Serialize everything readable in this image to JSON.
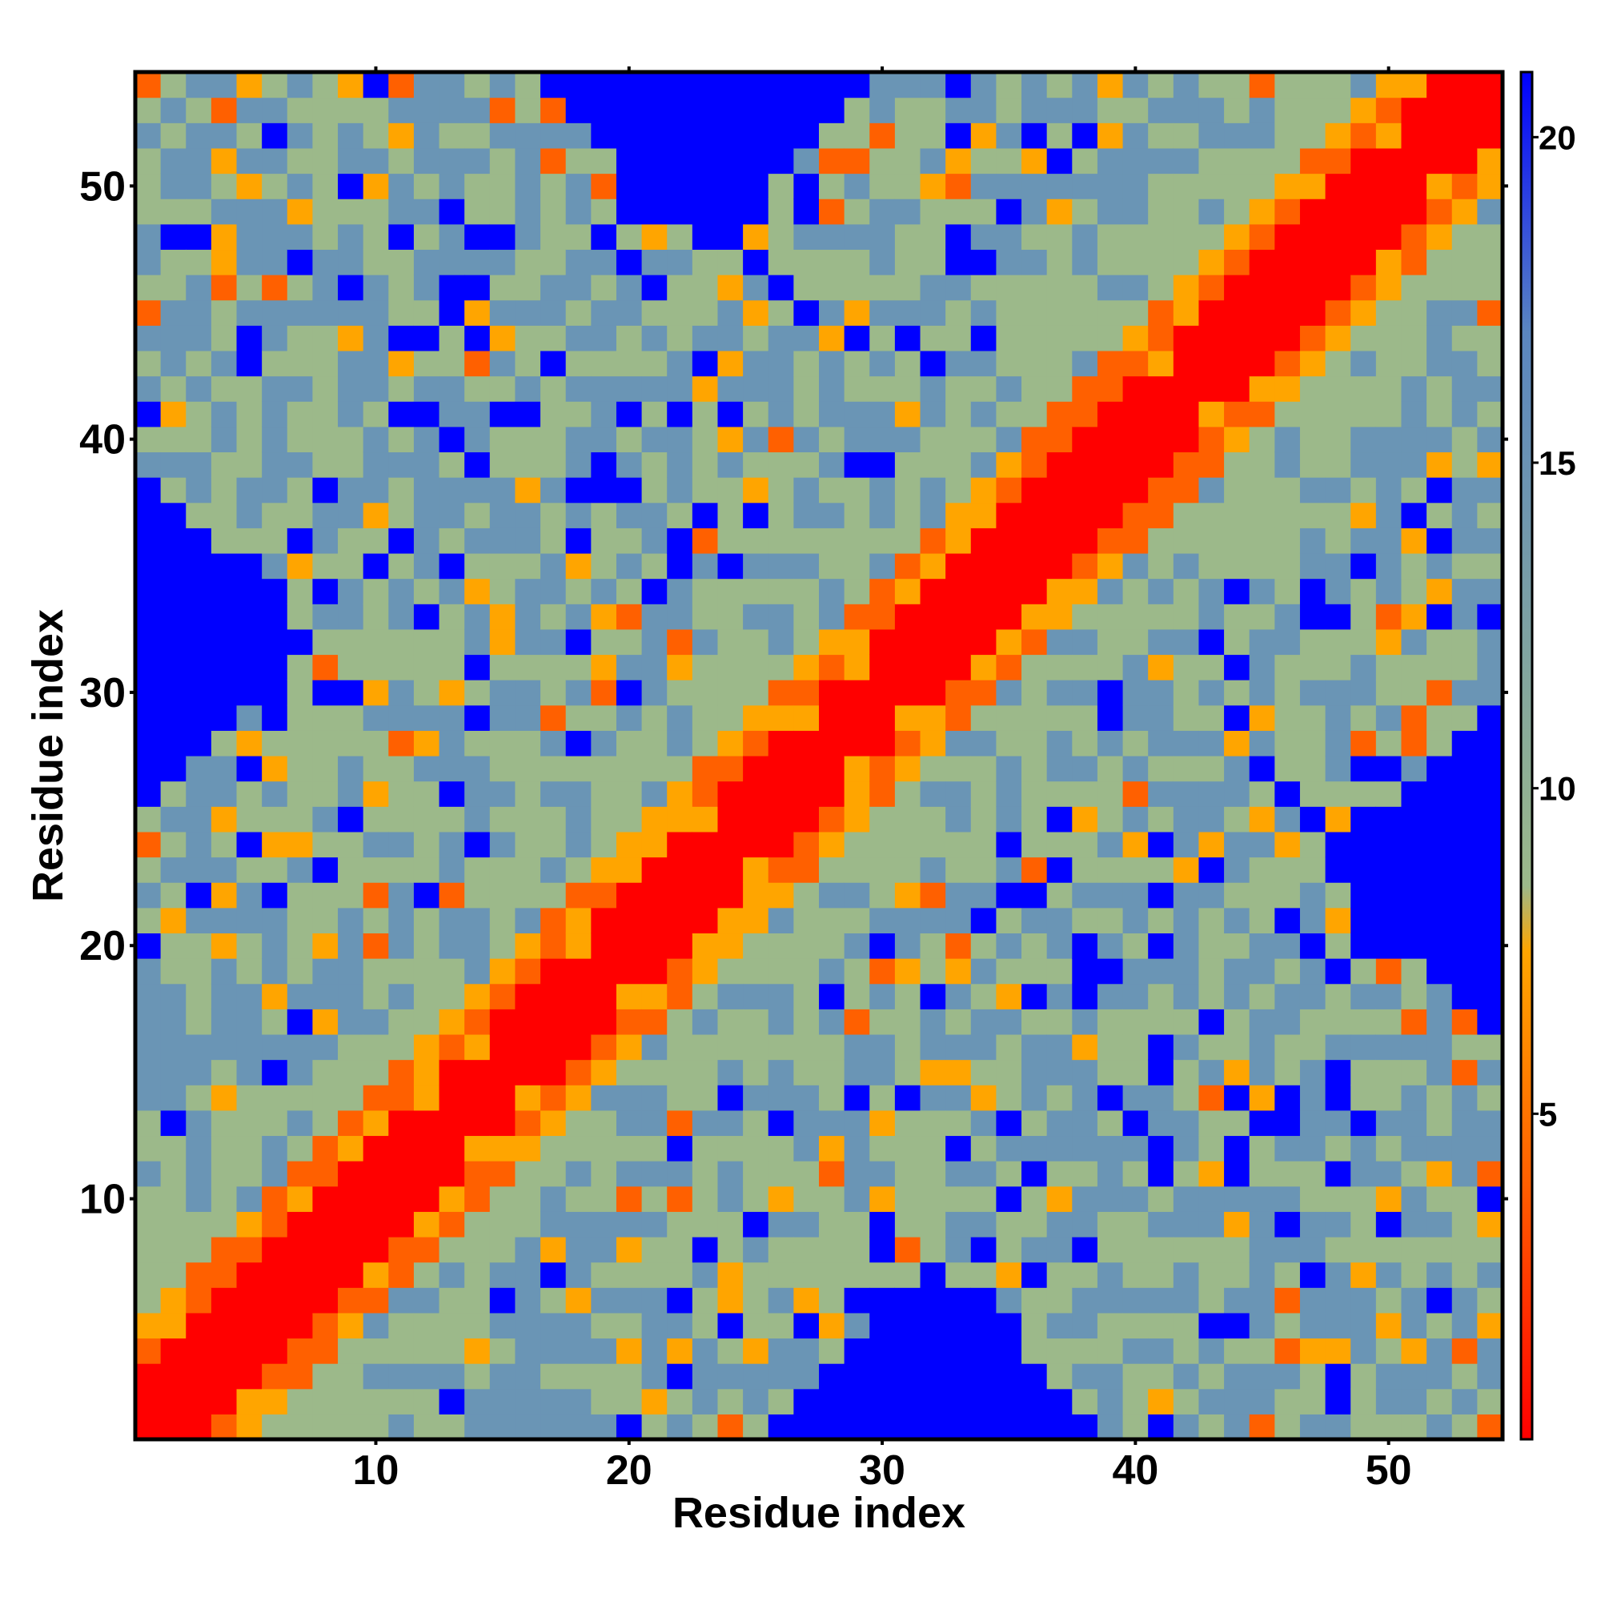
{
  "chart_data": {
    "type": "heatmap",
    "title": "",
    "xlabel": "Residue index",
    "ylabel": "Residue index",
    "xlim": [
      0.5,
      54.5
    ],
    "ylim": [
      0.5,
      54.5
    ],
    "x_ticks": [
      10,
      20,
      30,
      40,
      50
    ],
    "y_ticks": [
      10,
      20,
      30,
      40,
      50
    ],
    "n_residues": 54,
    "description_of_values": "symmetric residue-residue distance map; values near the diagonal are smallest",
    "value_range": [
      0,
      21
    ],
    "colorbar": {
      "ticks": [
        5,
        10,
        15,
        20
      ],
      "stops": [
        {
          "value": 0,
          "color": "#ff0000"
        },
        {
          "value": 4,
          "color": "#ff6000"
        },
        {
          "value": 7.5,
          "color": "#ffa500"
        },
        {
          "value": 8.5,
          "color": "#9cb98a"
        },
        {
          "value": 17,
          "color": "#5a86c0"
        },
        {
          "value": 21,
          "color": "#0000ff"
        }
      ]
    },
    "grid": false,
    "legend": "colorbar-right",
    "colors": {
      "diagonal": "#ff0000",
      "near": "#ff6000",
      "mid": "#ffa500",
      "sage": "#9cb98a",
      "steel": "#6a95b5",
      "blue": "#0000ff"
    }
  }
}
